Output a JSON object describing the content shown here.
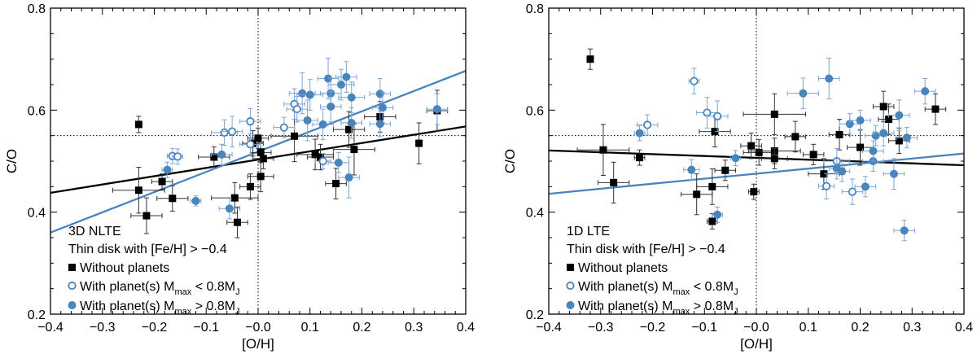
{
  "chart_data": [
    {
      "type": "scatter",
      "panel_label": "3D NLTE",
      "subtitle": "Thin disk with [Fe/H] > −0.4",
      "xlabel": "[O/H]",
      "ylabel": "C/O",
      "xlim": [
        -0.4,
        0.4
      ],
      "ylim": [
        0.2,
        0.8
      ],
      "xticks": [
        "−0.4",
        "−0.3",
        "−0.2",
        "−0.1",
        "−0.0",
        "0.1",
        "0.2",
        "0.3",
        "0.4"
      ],
      "yticks": [
        "0.2",
        "0.4",
        "0.6",
        "0.8"
      ],
      "ref_lines": {
        "x": 0.0,
        "y": 0.55
      },
      "legend": {
        "no_planet": "Without planets",
        "low_mass": "With planet(s) M",
        "low_mass_sub": "max",
        "low_mass_tail": " < 0.8M",
        "high_mass": "With planet(s) M",
        "high_mass_sub": "max",
        "high_mass_tail": " > 0.8M",
        "jup": "J"
      },
      "series": [
        {
          "name": "Without planets",
          "points": [
            {
              "x": -0.23,
              "y": 0.572,
              "ex": 0.0,
              "ey": 0.016
            },
            {
              "x": -0.23,
              "y": 0.443,
              "ex": 0.05,
              "ey": 0.045
            },
            {
              "x": -0.215,
              "y": 0.393,
              "ex": 0.03,
              "ey": 0.035
            },
            {
              "x": -0.185,
              "y": 0.46,
              "ex": 0.02,
              "ey": 0.015
            },
            {
              "x": -0.165,
              "y": 0.427,
              "ex": 0.03,
              "ey": 0.025
            },
            {
              "x": -0.085,
              "y": 0.508,
              "ex": 0.03,
              "ey": 0.02
            },
            {
              "x": -0.045,
              "y": 0.428,
              "ex": 0.045,
              "ey": 0.03
            },
            {
              "x": -0.04,
              "y": 0.38,
              "ex": 0.02,
              "ey": 0.03
            },
            {
              "x": -0.015,
              "y": 0.45,
              "ex": 0.02,
              "ey": 0.025
            },
            {
              "x": -0.01,
              "y": 0.535,
              "ex": 0.02,
              "ey": 0.025
            },
            {
              "x": 0.0,
              "y": 0.545,
              "ex": 0.02,
              "ey": 0.02
            },
            {
              "x": 0.005,
              "y": 0.47,
              "ex": 0.025,
              "ey": 0.03
            },
            {
              "x": 0.01,
              "y": 0.505,
              "ex": 0.02,
              "ey": 0.02
            },
            {
              "x": 0.005,
              "y": 0.517,
              "ex": 0.02,
              "ey": 0.02
            },
            {
              "x": 0.07,
              "y": 0.549,
              "ex": 0.045,
              "ey": 0.05
            },
            {
              "x": 0.11,
              "y": 0.513,
              "ex": 0.035,
              "ey": 0.03
            },
            {
              "x": 0.12,
              "y": 0.508,
              "ex": 0.025,
              "ey": 0.025
            },
            {
              "x": 0.15,
              "y": 0.456,
              "ex": 0.02,
              "ey": 0.03
            },
            {
              "x": 0.175,
              "y": 0.562,
              "ex": 0.03,
              "ey": 0.035
            },
            {
              "x": 0.185,
              "y": 0.523,
              "ex": 0.04,
              "ey": 0.05
            },
            {
              "x": 0.235,
              "y": 0.587,
              "ex": 0.03,
              "ey": 0.03
            },
            {
              "x": 0.31,
              "y": 0.535,
              "ex": 0.0,
              "ey": 0.04
            },
            {
              "x": 0.345,
              "y": 0.599,
              "ex": 0.02,
              "ey": 0.04
            }
          ]
        },
        {
          "name": "With planet(s) Mmax < 0.8MJ",
          "points": [
            {
              "x": -0.165,
              "y": 0.51,
              "ex": 0.01,
              "ey": 0.015
            },
            {
              "x": -0.155,
              "y": 0.509,
              "ex": 0.01,
              "ey": 0.015
            },
            {
              "x": -0.065,
              "y": 0.556,
              "ex": 0.025,
              "ey": 0.025
            },
            {
              "x": -0.05,
              "y": 0.558,
              "ex": 0.02,
              "ey": 0.03
            },
            {
              "x": -0.015,
              "y": 0.578,
              "ex": 0.02,
              "ey": 0.025
            },
            {
              "x": -0.015,
              "y": 0.533,
              "ex": 0.02,
              "ey": 0.02
            },
            {
              "x": 0.05,
              "y": 0.566,
              "ex": 0.02,
              "ey": 0.02
            },
            {
              "x": 0.07,
              "y": 0.612,
              "ex": 0.02,
              "ey": 0.03
            },
            {
              "x": 0.075,
              "y": 0.602,
              "ex": 0.02,
              "ey": 0.025
            },
            {
              "x": 0.125,
              "y": 0.5,
              "ex": 0.015,
              "ey": 0.015
            }
          ]
        },
        {
          "name": "With planet(s) Mmax > 0.8MJ",
          "points": [
            {
              "x": -0.175,
              "y": 0.483,
              "ex": 0.01,
              "ey": 0.015
            },
            {
              "x": -0.12,
              "y": 0.422,
              "ex": 0.01,
              "ey": 0.01
            },
            {
              "x": -0.07,
              "y": 0.513,
              "ex": 0.02,
              "ey": 0.02
            },
            {
              "x": -0.055,
              "y": 0.407,
              "ex": 0.02,
              "ey": 0.02
            },
            {
              "x": 0.085,
              "y": 0.633,
              "ex": 0.025,
              "ey": 0.04
            },
            {
              "x": 0.095,
              "y": 0.58,
              "ex": 0.02,
              "ey": 0.04
            },
            {
              "x": 0.1,
              "y": 0.63,
              "ex": 0.025,
              "ey": 0.03
            },
            {
              "x": 0.125,
              "y": 0.572,
              "ex": 0.02,
              "ey": 0.03
            },
            {
              "x": 0.135,
              "y": 0.662,
              "ex": 0.02,
              "ey": 0.04
            },
            {
              "x": 0.14,
              "y": 0.633,
              "ex": 0.02,
              "ey": 0.03
            },
            {
              "x": 0.14,
              "y": 0.607,
              "ex": 0.02,
              "ey": 0.03
            },
            {
              "x": 0.16,
              "y": 0.65,
              "ex": 0.025,
              "ey": 0.03
            },
            {
              "x": 0.17,
              "y": 0.665,
              "ex": 0.02,
              "ey": 0.03
            },
            {
              "x": 0.18,
              "y": 0.625,
              "ex": 0.025,
              "ey": 0.03
            },
            {
              "x": 0.18,
              "y": 0.575,
              "ex": 0.02,
              "ey": 0.03
            },
            {
              "x": 0.175,
              "y": 0.468,
              "ex": 0.02,
              "ey": 0.04
            },
            {
              "x": 0.155,
              "y": 0.497,
              "ex": 0.02,
              "ey": 0.02
            },
            {
              "x": 0.235,
              "y": 0.632,
              "ex": 0.02,
              "ey": 0.03
            },
            {
              "x": 0.24,
              "y": 0.605,
              "ex": 0.02,
              "ey": 0.03
            },
            {
              "x": 0.235,
              "y": 0.573,
              "ex": 0.02,
              "ey": 0.025
            },
            {
              "x": 0.345,
              "y": 0.602,
              "ex": 0.02,
              "ey": 0.03
            }
          ]
        }
      ],
      "fits": [
        {
          "name": "Without planets fit",
          "x": [
            -0.4,
            0.4
          ],
          "y": [
            0.438,
            0.568
          ]
        },
        {
          "name": "With planets fit",
          "x": [
            -0.4,
            0.4
          ],
          "y": [
            0.36,
            0.677
          ]
        }
      ]
    },
    {
      "type": "scatter",
      "panel_label": "1D LTE",
      "subtitle": "Thin disk with [Fe/H] > −0.4",
      "xlabel": "[O/H]",
      "ylabel": "C/O",
      "xlim": [
        -0.4,
        0.4
      ],
      "ylim": [
        0.2,
        0.8
      ],
      "xticks": [
        "−0.4",
        "−0.3",
        "−0.2",
        "−0.1",
        "−0.0",
        "0.1",
        "0.2",
        "0.3",
        "0.4"
      ],
      "yticks": [
        "0.2",
        "0.4",
        "0.6",
        "0.8"
      ],
      "ref_lines": {
        "x": 0.0,
        "y": 0.55
      },
      "legend": {
        "no_planet": "Without planets",
        "low_mass": "With planet(s) M",
        "low_mass_sub": "max",
        "low_mass_tail": " < 0.8M",
        "high_mass": "With planet(s) M",
        "high_mass_sub": "max",
        "high_mass_tail": " > 0.8M",
        "jup": "J"
      },
      "series": [
        {
          "name": "Without planets",
          "points": [
            {
              "x": -0.32,
              "y": 0.7,
              "ex": 0.0,
              "ey": 0.02
            },
            {
              "x": -0.295,
              "y": 0.522,
              "ex": 0.05,
              "ey": 0.05
            },
            {
              "x": -0.275,
              "y": 0.458,
              "ex": 0.03,
              "ey": 0.04
            },
            {
              "x": -0.225,
              "y": 0.507,
              "ex": 0.01,
              "ey": 0.015
            },
            {
              "x": -0.115,
              "y": 0.435,
              "ex": 0.03,
              "ey": 0.04
            },
            {
              "x": -0.08,
              "y": 0.558,
              "ex": 0.03,
              "ey": 0.03
            },
            {
              "x": -0.085,
              "y": 0.45,
              "ex": 0.03,
              "ey": 0.035
            },
            {
              "x": -0.085,
              "y": 0.382,
              "ex": 0.01,
              "ey": 0.015
            },
            {
              "x": -0.06,
              "y": 0.482,
              "ex": 0.02,
              "ey": 0.02
            },
            {
              "x": -0.01,
              "y": 0.53,
              "ex": 0.02,
              "ey": 0.025
            },
            {
              "x": -0.005,
              "y": 0.44,
              "ex": 0.01,
              "ey": 0.015
            },
            {
              "x": 0.005,
              "y": 0.517,
              "ex": 0.03,
              "ey": 0.025
            },
            {
              "x": 0.035,
              "y": 0.592,
              "ex": 0.06,
              "ey": 0.04
            },
            {
              "x": 0.035,
              "y": 0.52,
              "ex": 0.05,
              "ey": 0.025
            },
            {
              "x": 0.035,
              "y": 0.505,
              "ex": 0.025,
              "ey": 0.02
            },
            {
              "x": 0.075,
              "y": 0.548,
              "ex": 0.02,
              "ey": 0.03
            },
            {
              "x": 0.11,
              "y": 0.513,
              "ex": 0.02,
              "ey": 0.02
            },
            {
              "x": 0.13,
              "y": 0.475,
              "ex": 0.03,
              "ey": 0.03
            },
            {
              "x": 0.16,
              "y": 0.552,
              "ex": 0.02,
              "ey": 0.03
            },
            {
              "x": 0.2,
              "y": 0.527,
              "ex": 0.025,
              "ey": 0.035
            },
            {
              "x": 0.245,
              "y": 0.607,
              "ex": 0.02,
              "ey": 0.03
            },
            {
              "x": 0.255,
              "y": 0.582,
              "ex": 0.02,
              "ey": 0.03
            },
            {
              "x": 0.275,
              "y": 0.54,
              "ex": 0.02,
              "ey": 0.025
            },
            {
              "x": 0.345,
              "y": 0.602,
              "ex": 0.02,
              "ey": 0.03
            }
          ]
        },
        {
          "name": "With planet(s) Mmax < 0.8MJ",
          "points": [
            {
              "x": -0.12,
              "y": 0.657,
              "ex": 0.01,
              "ey": 0.025
            },
            {
              "x": -0.21,
              "y": 0.571,
              "ex": 0.02,
              "ey": 0.02
            },
            {
              "x": -0.095,
              "y": 0.595,
              "ex": 0.02,
              "ey": 0.03
            },
            {
              "x": -0.075,
              "y": 0.588,
              "ex": 0.02,
              "ey": 0.03
            },
            {
              "x": 0.155,
              "y": 0.5,
              "ex": 0.025,
              "ey": 0.025
            },
            {
              "x": 0.185,
              "y": 0.44,
              "ex": 0.02,
              "ey": 0.025
            },
            {
              "x": 0.135,
              "y": 0.451,
              "ex": 0.015,
              "ey": 0.025
            }
          ]
        },
        {
          "name": "With planet(s) Mmax > 0.8MJ",
          "points": [
            {
              "x": -0.225,
              "y": 0.555,
              "ex": 0.01,
              "ey": 0.015
            },
            {
              "x": -0.125,
              "y": 0.483,
              "ex": 0.015,
              "ey": 0.02
            },
            {
              "x": -0.075,
              "y": 0.395,
              "ex": 0.01,
              "ey": 0.015
            },
            {
              "x": -0.04,
              "y": 0.506,
              "ex": 0.01,
              "ey": 0.015
            },
            {
              "x": 0.09,
              "y": 0.633,
              "ex": 0.03,
              "ey": 0.03
            },
            {
              "x": 0.14,
              "y": 0.662,
              "ex": 0.02,
              "ey": 0.04
            },
            {
              "x": 0.155,
              "y": 0.485,
              "ex": 0.015,
              "ey": 0.02
            },
            {
              "x": 0.165,
              "y": 0.48,
              "ex": 0.015,
              "ey": 0.02
            },
            {
              "x": 0.18,
              "y": 0.573,
              "ex": 0.02,
              "ey": 0.02
            },
            {
              "x": 0.21,
              "y": 0.45,
              "ex": 0.02,
              "ey": 0.02
            },
            {
              "x": 0.2,
              "y": 0.58,
              "ex": 0.02,
              "ey": 0.02
            },
            {
              "x": 0.225,
              "y": 0.5,
              "ex": 0.02,
              "ey": 0.02
            },
            {
              "x": 0.23,
              "y": 0.55,
              "ex": 0.02,
              "ey": 0.02
            },
            {
              "x": 0.245,
              "y": 0.555,
              "ex": 0.02,
              "ey": 0.025
            },
            {
              "x": 0.265,
              "y": 0.475,
              "ex": 0.02,
              "ey": 0.03
            },
            {
              "x": 0.275,
              "y": 0.59,
              "ex": 0.02,
              "ey": 0.03
            },
            {
              "x": 0.29,
              "y": 0.546,
              "ex": 0.02,
              "ey": 0.02
            },
            {
              "x": 0.325,
              "y": 0.637,
              "ex": 0.02,
              "ey": 0.025
            },
            {
              "x": 0.285,
              "y": 0.364,
              "ex": 0.02,
              "ey": 0.02
            },
            {
              "x": 0.225,
              "y": 0.52,
              "ex": 0.02,
              "ey": 0.02
            }
          ]
        }
      ],
      "fits": [
        {
          "name": "Without planets fit",
          "x": [
            -0.4,
            0.4
          ],
          "y": [
            0.521,
            0.492
          ]
        },
        {
          "name": "With planets fit",
          "x": [
            -0.4,
            0.4
          ],
          "y": [
            0.436,
            0.515
          ]
        }
      ]
    }
  ],
  "colors": {
    "black": "#000000",
    "blue": "#4a84bd",
    "blue_err": "#7aa6d6",
    "err_black": "#333333"
  }
}
